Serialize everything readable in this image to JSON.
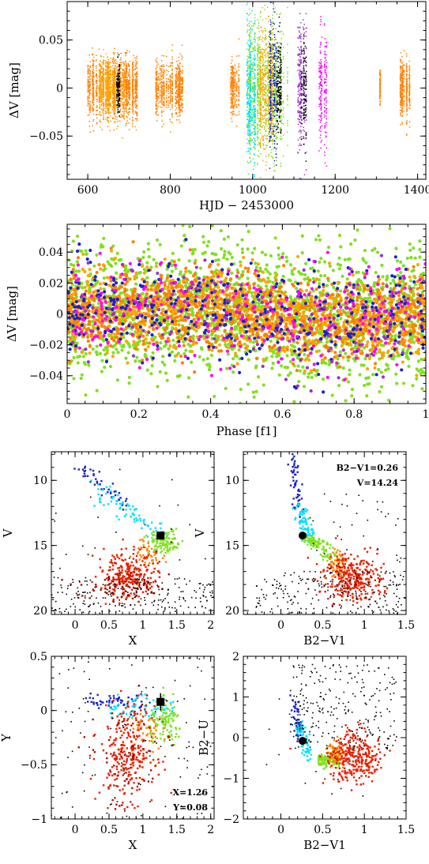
{
  "colors": {
    "orange": "#ff8000",
    "gold": "#ffa500",
    "lime": "#80e020",
    "cyan": "#00e0ff",
    "blue": "#1a22c8",
    "purple": "#9932cc",
    "magenta": "#ff00ff",
    "red": "#e82000",
    "darkred": "#b01000",
    "black": "#000000"
  },
  "chart_data": [
    {
      "id": "lightcurve",
      "type": "scatter",
      "xlabel": "HJD − 2453000",
      "ylabel": "ΔV [mag]",
      "xlim": [
        550,
        1420
      ],
      "ylim": [
        0.09,
        -0.095
      ],
      "xticks": [
        600,
        800,
        1000,
        1200,
        1400
      ],
      "yticks": [
        0.05,
        0,
        -0.05
      ],
      "ytick_labels": [
        "0.05",
        "0",
        "−0.05"
      ],
      "seasons": [
        {
          "x": [
            598,
            720
          ],
          "amp": 0.034,
          "color": "orange"
        },
        {
          "x": [
            628,
            690
          ],
          "amp": 0.03,
          "color": "gold"
        },
        {
          "x": [
            668,
            680
          ],
          "amp": 0.03,
          "color": "black"
        },
        {
          "x": [
            765,
            830
          ],
          "amp": 0.03,
          "color": "orange"
        },
        {
          "x": [
            945,
            968
          ],
          "amp": 0.03,
          "color": "orange"
        },
        {
          "x": [
            985,
            1085
          ],
          "amp": 0.075,
          "color": "lime"
        },
        {
          "x": [
            985,
            1010
          ],
          "amp": 0.08,
          "color": "cyan"
        },
        {
          "x": [
            1015,
            1050
          ],
          "amp": 0.065,
          "color": "gold"
        },
        {
          "x": [
            1040,
            1058
          ],
          "amp": 0.07,
          "color": "blue"
        },
        {
          "x": [
            1058,
            1070
          ],
          "amp": 0.06,
          "color": "black"
        },
        {
          "x": [
            1110,
            1130
          ],
          "amp": 0.075,
          "color": "purple"
        },
        {
          "x": [
            1118,
            1130
          ],
          "amp": 0.06,
          "color": "black"
        },
        {
          "x": [
            1160,
            1180
          ],
          "amp": 0.075,
          "color": "magenta"
        },
        {
          "x": [
            1305,
            1310
          ],
          "amp": 0.02,
          "color": "orange"
        },
        {
          "x": [
            1355,
            1385
          ],
          "amp": 0.035,
          "color": "orange"
        }
      ]
    },
    {
      "id": "phased",
      "type": "scatter",
      "xlabel": "Phase [f1]",
      "ylabel": "ΔV [mag]",
      "xlim": [
        0,
        1
      ],
      "ylim": [
        0.058,
        -0.058
      ],
      "xticks": [
        0,
        0.2,
        0.4,
        0.6,
        0.8,
        1
      ],
      "xtick_labels": [
        "0",
        "0.2",
        "0.4",
        "0.6",
        "0.8",
        "1"
      ],
      "yticks": [
        -0.04,
        -0.02,
        0,
        0.02,
        0.04
      ],
      "ytick_labels": [
        "−0.04",
        "−0.02",
        "0",
        "0.02",
        "0.04"
      ],
      "series_colors": [
        "lime",
        "orange",
        "gold",
        "blue",
        "magenta",
        "purple"
      ]
    },
    {
      "id": "cmd-x-v",
      "type": "scatter",
      "xlabel": "X",
      "ylabel": "V",
      "xlim": [
        -0.35,
        2.05
      ],
      "ylim": [
        7.8,
        20.3
      ],
      "xticks": [
        0,
        0.5,
        1,
        1.5,
        2
      ],
      "xtick_labels": [
        "0",
        "0.5",
        "1",
        "1.5",
        "2"
      ],
      "yticks": [
        10,
        15,
        20
      ],
      "ytick_labels": [
        "10",
        "15",
        "20"
      ],
      "star": {
        "x": 1.26,
        "y": 14.24
      }
    },
    {
      "id": "cmd-bv-v",
      "type": "scatter",
      "xlabel": "B2−V1",
      "ylabel": "V",
      "xlim": [
        -0.45,
        1.5
      ],
      "ylim": [
        7.8,
        20.3
      ],
      "xticks": [
        0,
        0.5,
        1,
        1.5
      ],
      "xtick_labels": [
        "0",
        "0.5",
        "1",
        "1.5"
      ],
      "yticks": [
        10,
        15,
        20
      ],
      "ytick_labels": [
        "10",
        "15",
        "20"
      ],
      "star": {
        "x": 0.26,
        "y": 14.24
      },
      "annotation": [
        "B2−V1=0.26",
        "V=14.24"
      ]
    },
    {
      "id": "xy",
      "type": "scatter",
      "xlabel": "X",
      "ylabel": "Y",
      "xlim": [
        -0.35,
        2.05
      ],
      "ylim": [
        0.5,
        -1.0
      ],
      "xticks": [
        0,
        0.5,
        1,
        1.5,
        2
      ],
      "xtick_labels": [
        "0",
        "0.5",
        "1",
        "1.5",
        "2"
      ],
      "yticks": [
        0.5,
        0,
        -0.5,
        -1
      ],
      "ytick_labels": [
        "0.5",
        "0",
        "−0.5",
        "−1"
      ],
      "star": {
        "x": 1.26,
        "y": 0.08
      },
      "annotation": [
        "X=1.26",
        "Y=0.08"
      ]
    },
    {
      "id": "bv-bu",
      "type": "scatter",
      "xlabel": "B2−V1",
      "ylabel": "B2−U",
      "xlim": [
        -0.45,
        1.5
      ],
      "ylim": [
        2,
        -2
      ],
      "xticks": [
        0,
        0.5,
        1,
        1.5
      ],
      "xtick_labels": [
        "0",
        "0.5",
        "1",
        "1.5"
      ],
      "yticks": [
        2,
        1,
        0,
        -1,
        -2
      ],
      "ytick_labels": [
        "2",
        "1",
        "0",
        "−1",
        "−2"
      ],
      "star": {
        "x": 0.26,
        "y": -0.08
      }
    }
  ]
}
